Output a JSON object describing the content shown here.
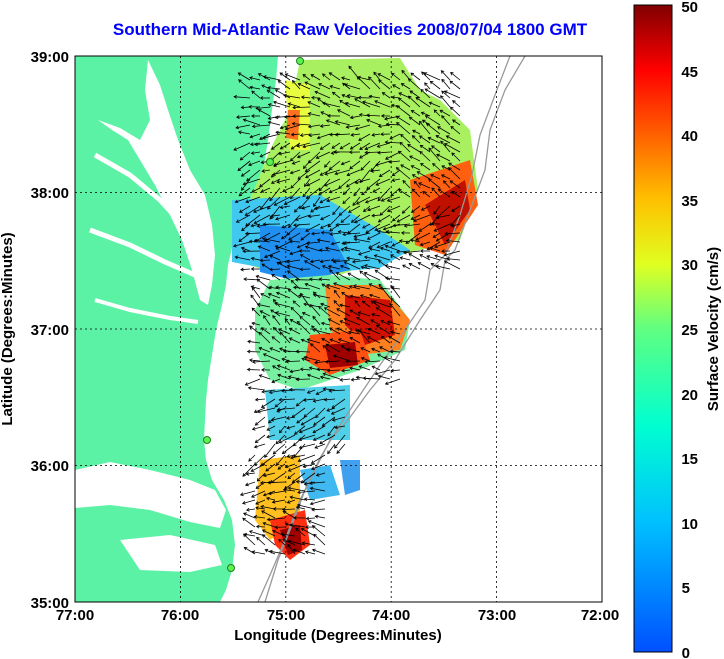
{
  "title": "Southern Mid-Atlantic Raw Velocities 2008/07/04 1800 GMT",
  "xlabel": "Longitude (Degrees:Minutes)",
  "ylabel": "Latitude (Degrees:Minutes)",
  "colorbar_label": "Surface Velocity (cm/s)",
  "x_ticks": [
    "77:00",
    "76:00",
    "75:00",
    "74:00",
    "73:00",
    "72:00"
  ],
  "y_ticks": [
    "39:00",
    "38:00",
    "37:00",
    "36:00",
    "35:00"
  ],
  "colorbar_ticks": [
    "0",
    "5",
    "10",
    "15",
    "20",
    "25",
    "30",
    "35",
    "40",
    "45",
    "50"
  ],
  "colors": {
    "land": "#5cf2a6",
    "title": "#0000ff",
    "grid": "#000000"
  },
  "chart_data": {
    "type": "heatmap",
    "title": "Southern Mid-Atlantic Raw Velocities 2008/07/04 1800 GMT",
    "xlabel": "Longitude (Degrees:Minutes)",
    "ylabel": "Latitude (Degrees:Minutes)",
    "xlim": [
      -77,
      -72
    ],
    "ylim": [
      35,
      39
    ],
    "grid": true,
    "colorbar": {
      "label": "Surface Velocity (cm/s)",
      "range": [
        0,
        50
      ],
      "placement": "right"
    },
    "hotspots": [
      {
        "lon": -73.6,
        "lat": 37.8,
        "speed_cm_s": 45
      },
      {
        "lon": -74.2,
        "lat": 37.1,
        "speed_cm_s": 42
      },
      {
        "lon": -74.45,
        "lat": 36.8,
        "speed_cm_s": 48
      },
      {
        "lon": -75.0,
        "lat": 35.45,
        "speed_cm_s": 47
      }
    ]
  }
}
